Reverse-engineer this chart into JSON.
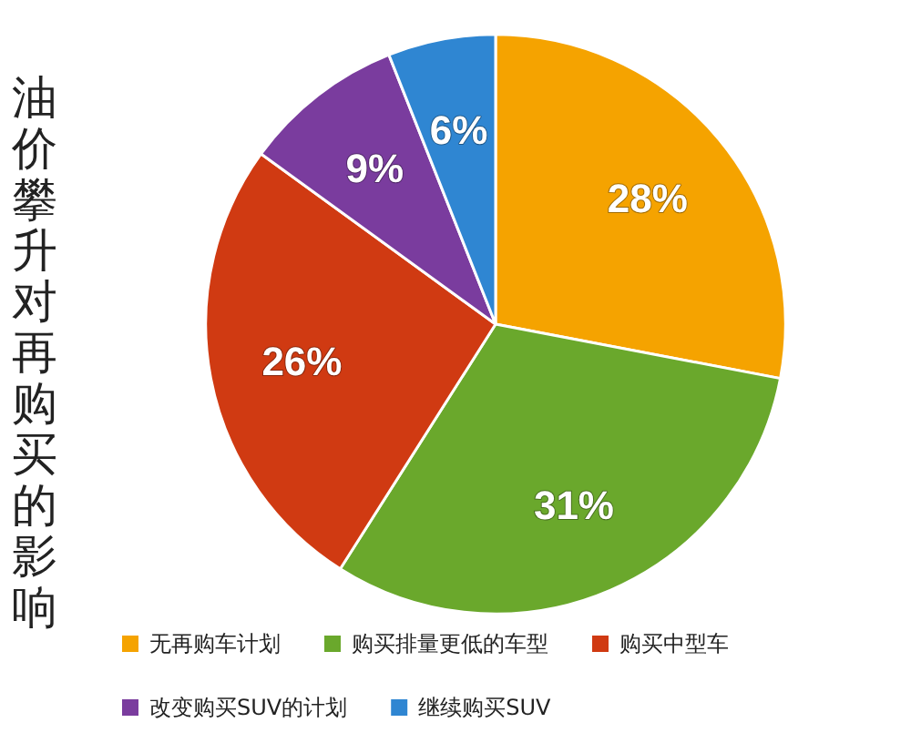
{
  "chart_data": {
    "type": "pie",
    "title": "油价攀升对再购买的影响",
    "categories": [
      "无再购车计划",
      "购买排量更低的车型",
      "购买中型车",
      "改变购买SUV的计划",
      "继续购买SUV"
    ],
    "values": [
      28,
      31,
      26,
      9,
      6
    ],
    "colors": [
      "#f5a300",
      "#6aa82c",
      "#d03a12",
      "#7a3c9e",
      "#2f86d2"
    ],
    "value_labels": [
      "28%",
      "31%",
      "26%",
      "9%",
      "6%"
    ],
    "legend": "bottom"
  }
}
